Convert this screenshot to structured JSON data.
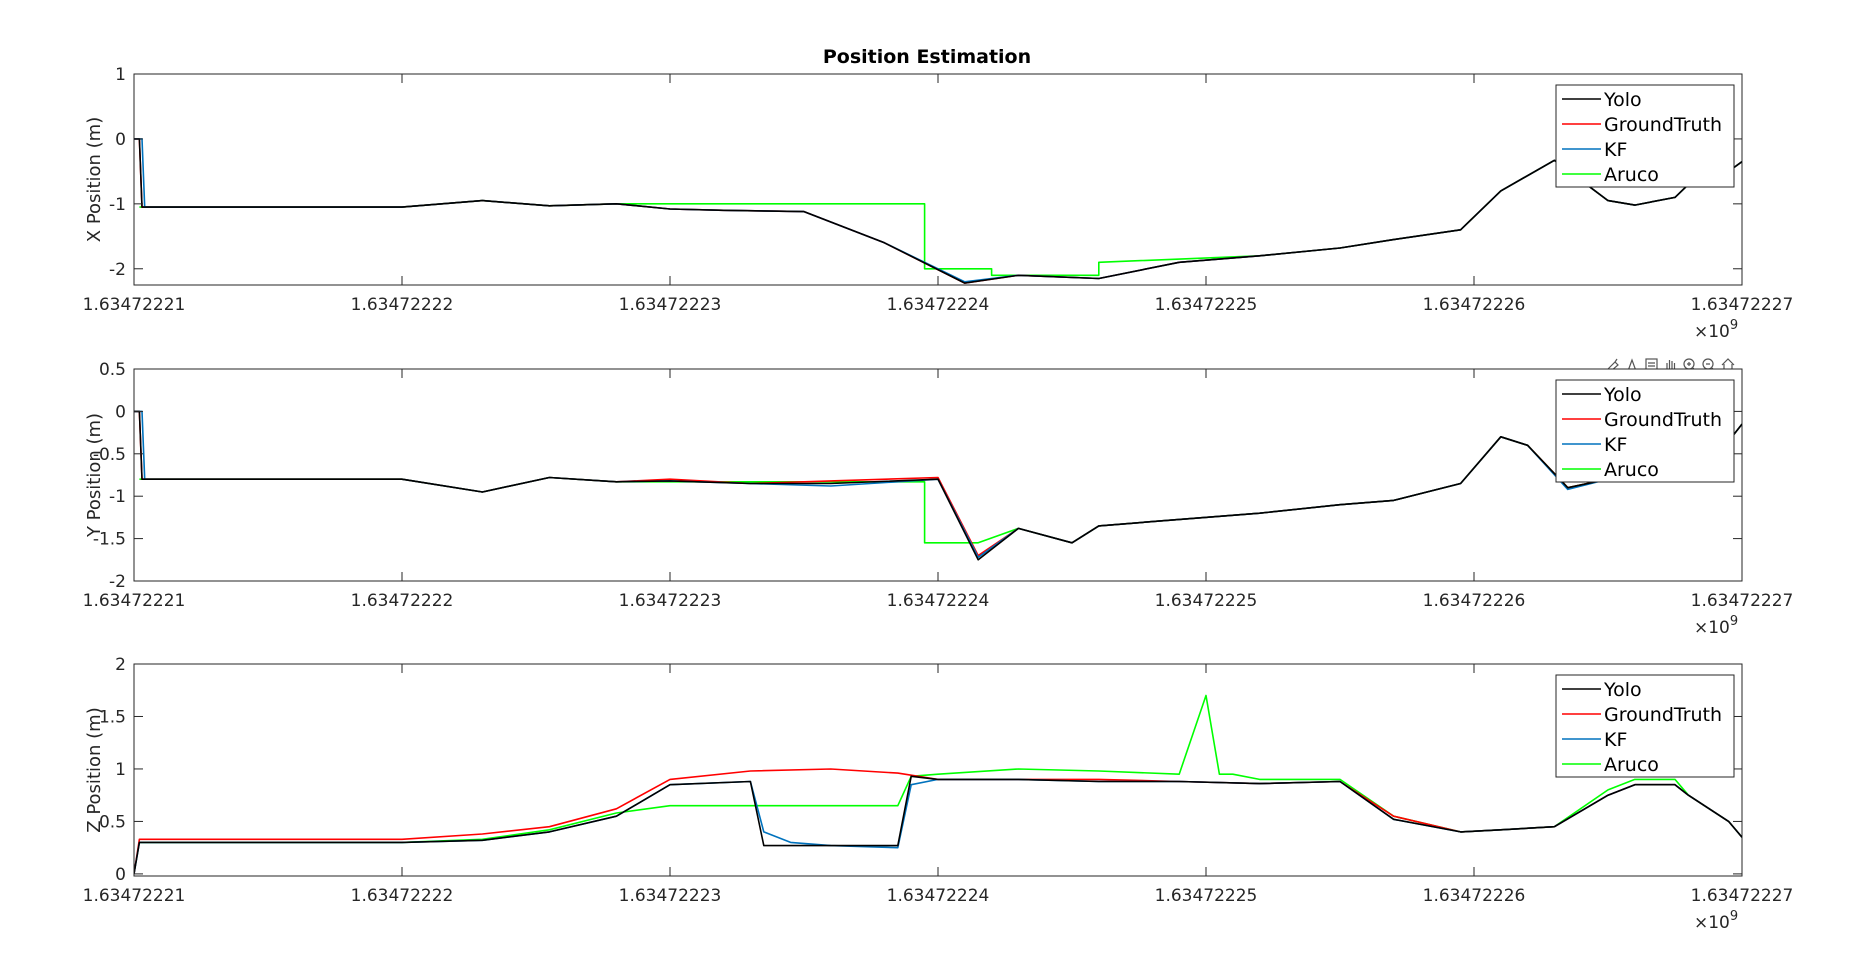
{
  "figure_title": "Position Estimation",
  "exponent": {
    "base": "×10",
    "power": "9"
  },
  "x_tick_labels": [
    "1.63472221",
    "1.63472222",
    "1.63472223",
    "1.63472224",
    "1.63472225",
    "1.63472226",
    "1.63472227"
  ],
  "toolbar": {
    "icons": [
      "brush-icon",
      "data-tips-icon",
      "save-icon",
      "pan-icon",
      "zoom-in-icon",
      "zoom-out-icon",
      "home-icon"
    ]
  },
  "colors": {
    "Yolo": "#000000",
    "GroundTruth": "#ff0000",
    "KF": "#0072bd",
    "Aruco": "#00ff00"
  },
  "chart_data": [
    {
      "type": "line",
      "title": "Position Estimation",
      "xlabel": "",
      "ylabel": "X Position (m)",
      "xlim": [
        0,
        6
      ],
      "x_unit_note": "x shown as offset from 1.63472221 in units of 1e1 s; ticks printed as 1.63472221..1.63472227 ×10^9",
      "ylim": [
        -2.25,
        1
      ],
      "yticks": [
        -2,
        -1,
        0,
        1
      ],
      "legend": [
        "Yolo",
        "GroundTruth",
        "KF",
        "Aruco"
      ],
      "legend_position": "top-right",
      "series": [
        {
          "name": "GroundTruth",
          "x": [
            0.0,
            0.02,
            0.03,
            0.5,
            1.0,
            1.3,
            1.55,
            1.8,
            2.0,
            2.2,
            2.5,
            2.8,
            3.1,
            3.3,
            3.6,
            3.9,
            4.2,
            4.5,
            4.7,
            4.95,
            5.1,
            5.3,
            5.5,
            5.6,
            5.75,
            5.8,
            5.95,
            6.0
          ],
          "y": [
            0.0,
            0.0,
            -1.05,
            -1.05,
            -1.05,
            -0.95,
            -1.03,
            -1.0,
            -1.08,
            -1.1,
            -1.12,
            -1.6,
            -2.22,
            -2.1,
            -2.15,
            -1.9,
            -1.8,
            -1.68,
            -1.55,
            -1.4,
            -0.8,
            -0.33,
            -0.95,
            -1.02,
            -0.9,
            -0.7,
            -0.5,
            -0.35
          ]
        },
        {
          "name": "Yolo",
          "x": [
            0.0,
            0.02,
            0.03,
            0.5,
            1.0,
            1.3,
            1.55,
            1.8,
            2.0,
            2.2,
            2.5,
            2.8,
            3.1,
            3.3,
            3.6,
            3.9,
            4.2,
            4.5,
            4.7,
            4.95,
            5.1,
            5.3,
            5.5,
            5.6,
            5.75,
            5.8,
            5.95,
            6.0
          ],
          "y": [
            0.0,
            0.0,
            -1.05,
            -1.05,
            -1.05,
            -0.95,
            -1.03,
            -1.0,
            -1.08,
            -1.1,
            -1.12,
            -1.6,
            -2.22,
            -2.1,
            -2.15,
            -1.9,
            -1.8,
            -1.68,
            -1.55,
            -1.4,
            -0.8,
            -0.33,
            -0.95,
            -1.02,
            -0.9,
            -0.7,
            -0.5,
            -0.35
          ]
        },
        {
          "name": "KF",
          "x": [
            0.0,
            0.03,
            0.04,
            0.5,
            1.0,
            1.3,
            1.55,
            1.8,
            2.0,
            2.2,
            2.5,
            2.8,
            3.1,
            3.3,
            3.6,
            3.9,
            4.2,
            4.5,
            4.7,
            4.95,
            5.1,
            5.3,
            5.5,
            5.6,
            5.75,
            5.8,
            5.95,
            6.0
          ],
          "y": [
            0.0,
            0.0,
            -1.05,
            -1.05,
            -1.05,
            -0.95,
            -1.03,
            -1.0,
            -1.08,
            -1.1,
            -1.12,
            -1.6,
            -2.2,
            -2.1,
            -2.15,
            -1.9,
            -1.8,
            -1.68,
            -1.55,
            -1.4,
            -0.8,
            -0.33,
            -0.95,
            -1.02,
            -0.9,
            -0.7,
            -0.5,
            -0.35
          ]
        },
        {
          "name": "Aruco",
          "x": [
            0.02,
            0.5,
            1.0,
            1.3,
            1.55,
            1.8,
            2.0,
            2.5,
            2.95,
            2.95,
            3.2,
            3.2,
            3.6,
            3.6,
            4.2,
            4.5,
            4.7,
            4.95,
            5.1,
            5.3,
            5.5,
            5.6,
            5.75,
            5.8,
            5.95,
            6.0
          ],
          "y": [
            -1.05,
            -1.05,
            -1.05,
            -0.95,
            -1.03,
            -1.0,
            -1.0,
            -1.0,
            -1.0,
            -2.0,
            -2.0,
            -2.1,
            -2.1,
            -1.9,
            -1.8,
            -1.68,
            -1.55,
            -1.4,
            -0.8,
            -0.33,
            -0.95,
            -1.02,
            -0.9,
            -0.7,
            -0.5,
            -0.35
          ]
        }
      ]
    },
    {
      "type": "line",
      "title": "",
      "xlabel": "",
      "ylabel": "Y Position (m)",
      "xlim": [
        0,
        6
      ],
      "ylim": [
        -2,
        0.5
      ],
      "yticks": [
        -2,
        -1.5,
        -1,
        -0.5,
        0,
        0.5
      ],
      "legend": [
        "Yolo",
        "GroundTruth",
        "KF",
        "Aruco"
      ],
      "legend_position": "top-right",
      "series": [
        {
          "name": "GroundTruth",
          "x": [
            0.0,
            0.02,
            0.03,
            0.5,
            1.0,
            1.3,
            1.55,
            1.8,
            2.0,
            2.3,
            2.6,
            3.0,
            3.15,
            3.3,
            3.5,
            3.6,
            3.8,
            4.2,
            4.5,
            4.7,
            4.95,
            5.1,
            5.2,
            5.35,
            5.5,
            5.6,
            5.75,
            5.95,
            6.0
          ],
          "y": [
            0.0,
            0.0,
            -0.8,
            -0.8,
            -0.8,
            -0.95,
            -0.78,
            -0.83,
            -0.8,
            -0.85,
            -0.82,
            -0.78,
            -1.7,
            -1.38,
            -1.55,
            -1.35,
            -1.3,
            -1.2,
            -1.1,
            -1.05,
            -0.85,
            -0.3,
            -0.4,
            -0.9,
            -0.8,
            -0.6,
            -0.55,
            -0.35,
            -0.15
          ]
        },
        {
          "name": "Yolo",
          "x": [
            0.0,
            0.02,
            0.03,
            0.5,
            1.0,
            1.3,
            1.55,
            1.8,
            2.0,
            2.3,
            2.6,
            3.0,
            3.15,
            3.3,
            3.5,
            3.6,
            3.8,
            4.2,
            4.5,
            4.7,
            4.95,
            5.1,
            5.2,
            5.35,
            5.5,
            5.6,
            5.75,
            5.95,
            6.0
          ],
          "y": [
            0.0,
            0.0,
            -0.8,
            -0.8,
            -0.8,
            -0.95,
            -0.78,
            -0.83,
            -0.82,
            -0.85,
            -0.85,
            -0.8,
            -1.75,
            -1.38,
            -1.55,
            -1.35,
            -1.3,
            -1.2,
            -1.1,
            -1.05,
            -0.85,
            -0.3,
            -0.4,
            -0.9,
            -0.8,
            -0.6,
            -0.55,
            -0.35,
            -0.15
          ]
        },
        {
          "name": "KF",
          "x": [
            0.0,
            0.03,
            0.04,
            0.5,
            1.0,
            1.3,
            1.55,
            1.8,
            2.0,
            2.3,
            2.6,
            3.0,
            3.15,
            3.3,
            3.5,
            3.6,
            3.8,
            4.2,
            4.5,
            4.7,
            4.95,
            5.1,
            5.2,
            5.35,
            5.5,
            5.6,
            5.75,
            5.95,
            6.0
          ],
          "y": [
            0.0,
            0.0,
            -0.8,
            -0.8,
            -0.8,
            -0.95,
            -0.78,
            -0.83,
            -0.82,
            -0.85,
            -0.88,
            -0.8,
            -1.72,
            -1.38,
            -1.55,
            -1.35,
            -1.3,
            -1.2,
            -1.1,
            -1.05,
            -0.85,
            -0.3,
            -0.4,
            -0.92,
            -0.8,
            -0.6,
            -0.55,
            -0.35,
            -0.15
          ]
        },
        {
          "name": "Aruco",
          "x": [
            0.02,
            0.5,
            1.0,
            1.3,
            1.55,
            1.8,
            2.0,
            2.5,
            2.95,
            2.95,
            3.15,
            3.3,
            3.5,
            3.6,
            3.8,
            4.2,
            4.5,
            4.7,
            4.95,
            5.1,
            5.2,
            5.35,
            5.5,
            5.6,
            5.75,
            5.95,
            6.0
          ],
          "y": [
            -0.8,
            -0.8,
            -0.8,
            -0.95,
            -0.78,
            -0.83,
            -0.83,
            -0.83,
            -0.83,
            -1.55,
            -1.55,
            -1.38,
            -1.55,
            -1.35,
            -1.3,
            -1.2,
            -1.1,
            -1.05,
            -0.85,
            -0.3,
            -0.4,
            -0.9,
            -0.8,
            -0.6,
            -0.55,
            -0.35,
            -0.15
          ]
        }
      ]
    },
    {
      "type": "line",
      "title": "",
      "xlabel": "",
      "ylabel": "Z Position (m)",
      "xlim": [
        0,
        6
      ],
      "ylim": [
        -0.02,
        2
      ],
      "yticks": [
        0,
        0.5,
        1,
        1.5,
        2
      ],
      "legend": [
        "Yolo",
        "GroundTruth",
        "KF",
        "Aruco"
      ],
      "legend_position": "top-right",
      "series": [
        {
          "name": "GroundTruth",
          "x": [
            0.0,
            0.02,
            0.03,
            0.5,
            1.0,
            1.3,
            1.55,
            1.8,
            2.0,
            2.3,
            2.6,
            2.85,
            3.0,
            3.3,
            3.6,
            3.9,
            4.2,
            4.5,
            4.7,
            4.95,
            5.1,
            5.3,
            5.5,
            5.6,
            5.75,
            5.8,
            5.95,
            6.0
          ],
          "y": [
            0.0,
            0.33,
            0.33,
            0.33,
            0.33,
            0.38,
            0.45,
            0.62,
            0.9,
            0.98,
            1.0,
            0.96,
            0.9,
            0.9,
            0.9,
            0.88,
            0.86,
            0.88,
            0.55,
            0.4,
            0.42,
            0.45,
            0.75,
            0.85,
            0.85,
            0.75,
            0.5,
            0.35
          ]
        },
        {
          "name": "Yolo",
          "x": [
            0.0,
            0.02,
            0.03,
            0.5,
            1.0,
            1.3,
            1.55,
            1.8,
            2.0,
            2.3,
            2.35,
            2.6,
            2.85,
            2.9,
            3.0,
            3.3,
            3.6,
            3.9,
            4.2,
            4.5,
            4.7,
            4.95,
            5.1,
            5.3,
            5.5,
            5.6,
            5.75,
            5.8,
            5.95,
            6.0
          ],
          "y": [
            0.0,
            0.3,
            0.3,
            0.3,
            0.3,
            0.32,
            0.4,
            0.55,
            0.85,
            0.88,
            0.27,
            0.27,
            0.27,
            0.93,
            0.9,
            0.9,
            0.88,
            0.88,
            0.86,
            0.88,
            0.52,
            0.4,
            0.42,
            0.45,
            0.75,
            0.85,
            0.85,
            0.75,
            0.5,
            0.35
          ]
        },
        {
          "name": "KF",
          "x": [
            0.0,
            0.02,
            0.03,
            0.5,
            1.0,
            1.3,
            1.55,
            1.8,
            2.0,
            2.3,
            2.35,
            2.45,
            2.6,
            2.85,
            2.9,
            3.0,
            3.3,
            3.6,
            3.9,
            4.2,
            4.5,
            4.7,
            4.95,
            5.1,
            5.3,
            5.5,
            5.6,
            5.75,
            5.8,
            5.95,
            6.0
          ],
          "y": [
            0.0,
            0.3,
            0.3,
            0.3,
            0.3,
            0.32,
            0.4,
            0.55,
            0.85,
            0.88,
            0.4,
            0.3,
            0.27,
            0.25,
            0.85,
            0.9,
            0.9,
            0.88,
            0.88,
            0.86,
            0.88,
            0.52,
            0.4,
            0.42,
            0.45,
            0.75,
            0.85,
            0.85,
            0.75,
            0.5,
            0.35
          ]
        },
        {
          "name": "Aruco",
          "x": [
            0.02,
            0.5,
            1.0,
            1.3,
            1.55,
            1.8,
            2.0,
            2.35,
            2.85,
            2.9,
            3.0,
            3.3,
            3.6,
            3.9,
            4.0,
            4.05,
            4.1,
            4.2,
            4.5,
            4.7,
            4.95,
            5.1,
            5.3,
            5.5,
            5.6,
            5.75,
            5.8,
            5.95,
            6.0
          ],
          "y": [
            0.3,
            0.3,
            0.3,
            0.33,
            0.42,
            0.58,
            0.65,
            0.65,
            0.65,
            0.93,
            0.95,
            1.0,
            0.98,
            0.95,
            1.7,
            0.95,
            0.95,
            0.9,
            0.9,
            0.55,
            0.4,
            0.42,
            0.45,
            0.8,
            0.9,
            0.9,
            0.75,
            0.5,
            0.35
          ]
        }
      ]
    }
  ]
}
